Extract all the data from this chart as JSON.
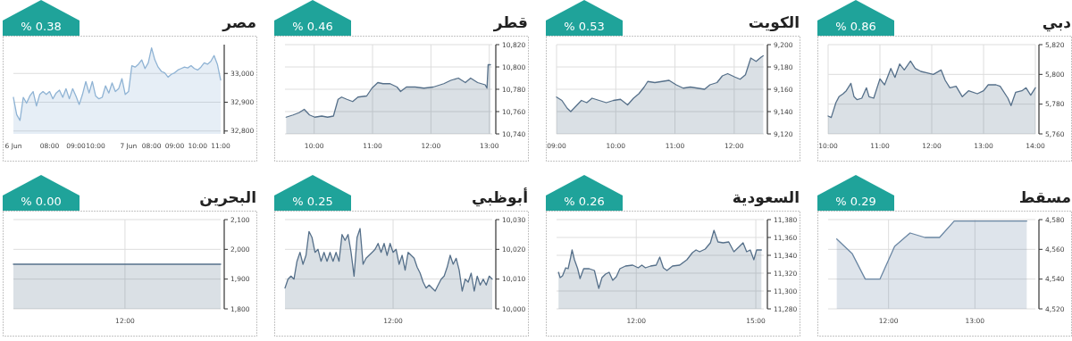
{
  "chart_data": [
    {
      "type": "area",
      "title": "مصر",
      "subtitle": "% 0.38",
      "categories": [
        "6 Jun",
        null,
        null,
        null,
        null,
        null,
        null,
        null,
        null,
        null,
        null,
        "08:00",
        null,
        null,
        null,
        null,
        null,
        null,
        null,
        "09:00",
        null,
        null,
        null,
        null,
        null,
        "10:00",
        null,
        null,
        null,
        null,
        null,
        null,
        null,
        null,
        null,
        "7 Jun",
        null,
        null,
        null,
        null,
        null,
        null,
        "08:00",
        null,
        null,
        null,
        null,
        null,
        null,
        "09:00",
        null,
        null,
        null,
        null,
        null,
        null,
        "10:00",
        null,
        null,
        null,
        null,
        null,
        null,
        "11:00"
      ],
      "series": [
        {
          "color": "#8fb3d4",
          "values": [
            32917,
            32857,
            32837,
            32917,
            32897,
            32922,
            32937,
            32887,
            32927,
            32937,
            32927,
            32937,
            32912,
            32932,
            32942,
            32917,
            32947,
            32912,
            32947,
            32922,
            32892,
            32927,
            32972,
            32932,
            32972,
            32922,
            32912,
            32917,
            32957,
            32932,
            32967,
            32937,
            32947,
            32982,
            32927,
            32937,
            33027,
            33022,
            33032,
            33047,
            33017,
            33037,
            33089,
            33047,
            33022,
            33007,
            33002,
            32987,
            32997,
            33002,
            33012,
            33017,
            33022,
            33019,
            33027,
            33017,
            33012,
            33022,
            33037,
            33032,
            33042,
            33062,
            33032,
            32977
          ]
        }
      ],
      "ylim": [
        32790,
        33100
      ],
      "yticks": [
        {
          "value": 32800,
          "label": "32,800"
        },
        {
          "value": 32900,
          "label": "32,900"
        },
        {
          "value": 33000,
          "label": "33,000"
        }
      ],
      "grid": "y"
    },
    {
      "type": "area",
      "title": "قطر",
      "subtitle": "% 0.46",
      "x": [
        9.52,
        9.64,
        9.74,
        9.83,
        9.92,
        10.01,
        10.13,
        10.23,
        10.33,
        10.41,
        10.47,
        10.56,
        10.66,
        10.75,
        10.9,
        10.99,
        11.09,
        11.18,
        11.3,
        11.42,
        11.48,
        11.58,
        11.73,
        11.88,
        12.04,
        12.22,
        12.34,
        12.47,
        12.59,
        12.68,
        12.8,
        12.93,
        12.96,
        12.98,
        13.02
      ],
      "series": [
        {
          "color": "#56708a",
          "values": [
            10755,
            10757,
            10759,
            10762,
            10757,
            10755,
            10756,
            10755,
            10756,
            10771,
            10773,
            10771,
            10769,
            10773,
            10774,
            10781,
            10786,
            10785,
            10785,
            10782,
            10778,
            10782,
            10782,
            10781,
            10782,
            10785,
            10788,
            10790,
            10786,
            10790,
            10786,
            10784,
            10781,
            10802,
            10802
          ]
        }
      ],
      "xlim": [
        9.5,
        13.05
      ],
      "ylim": [
        10740,
        10820
      ],
      "xticks": [
        {
          "value": 10,
          "label": "10:00"
        },
        {
          "value": 11,
          "label": "11:00"
        },
        {
          "value": 12,
          "label": "12:00"
        },
        {
          "value": 13,
          "label": "13:00"
        }
      ],
      "yticks": [
        {
          "value": 10740,
          "label": "10,740"
        },
        {
          "value": 10760,
          "label": "10,760"
        },
        {
          "value": 10780,
          "label": "10,780"
        },
        {
          "value": 10800,
          "label": "10,800"
        },
        {
          "value": 10820,
          "label": "10,820"
        }
      ],
      "grid": true
    },
    {
      "type": "area",
      "title": "الكويت",
      "subtitle": "% 0.53",
      "x": [
        9.0,
        9.09,
        9.18,
        9.24,
        9.33,
        9.42,
        9.51,
        9.6,
        9.72,
        9.84,
        9.96,
        10.08,
        10.2,
        10.3,
        10.39,
        10.48,
        10.54,
        10.66,
        10.78,
        10.9,
        11.02,
        11.14,
        11.26,
        11.38,
        11.5,
        11.59,
        11.71,
        11.8,
        11.89,
        12.01,
        12.1,
        12.19,
        12.28,
        12.37,
        12.46,
        12.49
      ],
      "series": [
        {
          "color": "#56708a",
          "values": [
            9153,
            9150,
            9143,
            9140,
            9145,
            9150,
            9148,
            9152,
            9150,
            9148,
            9150,
            9151,
            9146,
            9152,
            9156,
            9162,
            9167,
            9166,
            9167,
            9168,
            9164,
            9161,
            9162,
            9161,
            9160,
            9164,
            9166,
            9172,
            9174,
            9171,
            9169,
            9173,
            9188,
            9185,
            9189,
            9190
          ]
        }
      ],
      "xlim": [
        9.0,
        12.5
      ],
      "ylim": [
        9120,
        9200
      ],
      "xticks": [
        {
          "value": 9,
          "label": "09:00"
        },
        {
          "value": 10,
          "label": "10:00"
        },
        {
          "value": 11,
          "label": "11:00"
        },
        {
          "value": 12,
          "label": "12:00"
        }
      ],
      "yticks": [
        {
          "value": 9120,
          "label": "9,120"
        },
        {
          "value": 9140,
          "label": "9,140"
        },
        {
          "value": 9160,
          "label": "9,160"
        },
        {
          "value": 9180,
          "label": "9,180"
        },
        {
          "value": 9200,
          "label": "9,200"
        }
      ],
      "grid": true
    },
    {
      "type": "area",
      "title": "دبي",
      "subtitle": "% 0.86",
      "x": [
        10.0,
        10.06,
        10.15,
        10.21,
        10.29,
        10.35,
        10.44,
        10.5,
        10.56,
        10.65,
        10.74,
        10.79,
        10.88,
        11.0,
        11.09,
        11.21,
        11.29,
        11.38,
        11.47,
        11.59,
        11.68,
        11.79,
        11.91,
        12.03,
        12.18,
        12.26,
        12.35,
        12.47,
        12.59,
        12.71,
        12.88,
        13.0,
        13.09,
        13.24,
        13.32,
        13.47,
        13.53,
        13.62,
        13.74,
        13.82,
        13.91,
        14.0
      ],
      "series": [
        {
          "color": "#56708a",
          "values": [
            5772,
            5771,
            5781,
            5785,
            5787,
            5789,
            5794,
            5785,
            5783,
            5784,
            5791,
            5785,
            5784,
            5797,
            5793,
            5804,
            5798,
            5807,
            5803,
            5809,
            5804,
            5802,
            5801,
            5800,
            5803,
            5796,
            5791,
            5792,
            5785,
            5789,
            5787,
            5789,
            5793,
            5793,
            5792,
            5784,
            5779,
            5788,
            5789,
            5791,
            5786,
            5791
          ]
        }
      ],
      "xlim": [
        10.0,
        14.0
      ],
      "ylim": [
        5760,
        5820
      ],
      "xticks": [
        {
          "value": 10,
          "label": "10:00"
        },
        {
          "value": 11,
          "label": "11:00"
        },
        {
          "value": 12,
          "label": "12:00"
        },
        {
          "value": 13,
          "label": "13:00"
        },
        {
          "value": 14,
          "label": "14:00"
        }
      ],
      "yticks": [
        {
          "value": 5760,
          "label": "5,760"
        },
        {
          "value": 5780,
          "label": "5,780"
        },
        {
          "value": 5800,
          "label": "5,800"
        },
        {
          "value": 5820,
          "label": "5,820"
        }
      ],
      "grid": true
    },
    {
      "type": "area",
      "title": "البحرين",
      "subtitle": "% 0.00",
      "categories": [
        null,
        null,
        null,
        null,
        null,
        null,
        null,
        "12:00",
        null,
        null,
        null,
        null,
        null,
        null
      ],
      "series": [
        {
          "color": "#56708a",
          "values": [
            1950,
            1950,
            1950,
            1950,
            1950,
            1950,
            1950,
            1950,
            1950,
            1950,
            1950,
            1950,
            1950,
            1950
          ]
        }
      ],
      "ylim": [
        1800,
        2100
      ],
      "yticks": [
        {
          "value": 1800,
          "label": "1,800"
        },
        {
          "value": 1900,
          "label": "1,900"
        },
        {
          "value": 2000,
          "label": "2,000"
        },
        {
          "value": 2100,
          "label": "2,100"
        }
      ],
      "grid": true
    },
    {
      "type": "area",
      "title": "أبوظبي",
      "subtitle": "% 0.25",
      "categories": [
        null,
        null,
        null,
        null,
        null,
        null,
        null,
        null,
        null,
        null,
        null,
        null,
        null,
        null,
        null,
        null,
        null,
        null,
        null,
        null,
        null,
        null,
        null,
        null,
        null,
        null,
        null,
        null,
        null,
        null,
        null,
        null,
        null,
        null,
        null,
        null,
        "12:00",
        null,
        null,
        null,
        null,
        null,
        null,
        null,
        null,
        null,
        null,
        null,
        null,
        null,
        null,
        null,
        null,
        null,
        null,
        null,
        null,
        null,
        null,
        null,
        null,
        null,
        null,
        null,
        null,
        null,
        null,
        null,
        null,
        null
      ],
      "series": [
        {
          "color": "#56708a",
          "values": [
            10007,
            10010,
            10011,
            10010,
            10016,
            10019,
            10015,
            10018,
            10026,
            10024,
            10019,
            10020,
            10016,
            10019,
            10016,
            10019,
            10016,
            10019,
            10016,
            10025,
            10023,
            10025,
            10019,
            10011,
            10024,
            10027,
            10015,
            10017,
            10018,
            10019,
            10020,
            10022,
            10019,
            10022,
            10018,
            10022,
            10019,
            10020,
            10015,
            10018,
            10013,
            10019,
            10018,
            10017,
            10014,
            10012,
            10009,
            10007,
            10008,
            10007,
            10006,
            10008,
            10010,
            10011,
            10014,
            10018,
            10015,
            10017,
            10013,
            10006,
            10010,
            10009,
            10012,
            10006,
            10011,
            10008,
            10010,
            10008,
            10011,
            10010
          ]
        }
      ],
      "ylim": [
        10000,
        10030
      ],
      "yticks": [
        {
          "value": 10000,
          "label": "10,000"
        },
        {
          "value": 10010,
          "label": "10,010"
        },
        {
          "value": 10020,
          "label": "10,020"
        },
        {
          "value": 10030,
          "label": "10,030"
        }
      ],
      "grid": true
    },
    {
      "type": "area",
      "title": "السعودية",
      "subtitle": "% 0.26",
      "x": [
        10.05,
        10.09,
        10.15,
        10.23,
        10.29,
        10.35,
        10.39,
        10.45,
        10.53,
        10.59,
        10.68,
        10.82,
        10.95,
        11.02,
        11.06,
        11.14,
        11.23,
        11.32,
        11.41,
        11.5,
        11.59,
        11.73,
        11.91,
        12.05,
        12.14,
        12.23,
        12.36,
        12.5,
        12.59,
        12.68,
        12.77,
        12.91,
        13.09,
        13.27,
        13.41,
        13.5,
        13.59,
        13.73,
        13.86,
        13.95,
        14.05,
        14.18,
        14.32,
        14.45,
        14.59,
        14.68,
        14.77,
        14.86,
        14.95,
        15.02,
        15.14
      ],
      "series": [
        {
          "color": "#56708a",
          "values": [
            11321,
            11315,
            11317,
            11326,
            11325,
            11337,
            11346,
            11335,
            11325,
            11314,
            11325,
            11325,
            11323,
            11310,
            11303,
            11315,
            11319,
            11321,
            11312,
            11316,
            11325,
            11328,
            11329,
            11326,
            11329,
            11326,
            11328,
            11329,
            11338,
            11326,
            11323,
            11328,
            11329,
            11335,
            11343,
            11346,
            11344,
            11347,
            11354,
            11368,
            11355,
            11354,
            11355,
            11344,
            11350,
            11354,
            11344,
            11346,
            11335,
            11346,
            11346
          ]
        }
      ],
      "xlim": [
        10.0,
        15.2
      ],
      "ylim": [
        11280,
        11380
      ],
      "xticks": [
        {
          "value": 12,
          "label": "12:00"
        },
        {
          "value": 15,
          "label": "15:00"
        }
      ],
      "yticks": [
        {
          "value": 11280,
          "label": "11,280"
        },
        {
          "value": 11300,
          "label": "11,300"
        },
        {
          "value": 11320,
          "label": "11,320"
        },
        {
          "value": 11340,
          "label": "11,340"
        },
        {
          "value": 11360,
          "label": "11,360"
        },
        {
          "value": 11380,
          "label": "11,380"
        }
      ],
      "grid": true
    },
    {
      "type": "area",
      "title": "مسقط",
      "subtitle": "% 0.29",
      "x": [
        11.4,
        11.58,
        11.73,
        11.9,
        12.07,
        12.25,
        12.42,
        12.59,
        12.76,
        13.6
      ],
      "series": [
        {
          "color": "#6a86a3",
          "values": [
            4567,
            4557,
            4540,
            4540,
            4562,
            4571,
            4568,
            4568,
            4579,
            4579
          ]
        }
      ],
      "xlim": [
        11.3,
        13.7
      ],
      "ylim": [
        4520,
        4580
      ],
      "xticks": [
        {
          "value": 12,
          "label": "12:00"
        },
        {
          "value": 13,
          "label": "13:00"
        }
      ],
      "yticks": [
        {
          "value": 4520,
          "label": "4,520"
        },
        {
          "value": 4540,
          "label": "4,540"
        },
        {
          "value": 4560,
          "label": "4,560"
        },
        {
          "value": 4580,
          "label": "4,580"
        }
      ],
      "grid": true
    }
  ]
}
